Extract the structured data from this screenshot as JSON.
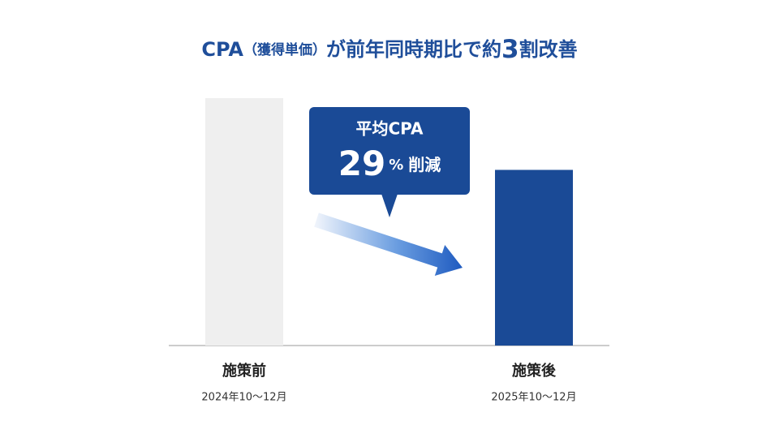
{
  "chart_data": {
    "type": "bar",
    "title_parts": [
      "CPA",
      "（獲得単価）",
      "が前年同時期比で約",
      "3",
      "割改善"
    ],
    "categories": [
      "施策前",
      "施策後"
    ],
    "periods": [
      "2024年10〜12月",
      "2025年10〜12月"
    ],
    "values": [
      100,
      71
    ],
    "colors": [
      "#efefef",
      "#1a4a96"
    ],
    "ylim": [
      0,
      100
    ],
    "callout": {
      "title": "平均CPA",
      "value": 29,
      "unit": "%",
      "suffix": "削減",
      "color": "#1a4a96"
    }
  }
}
